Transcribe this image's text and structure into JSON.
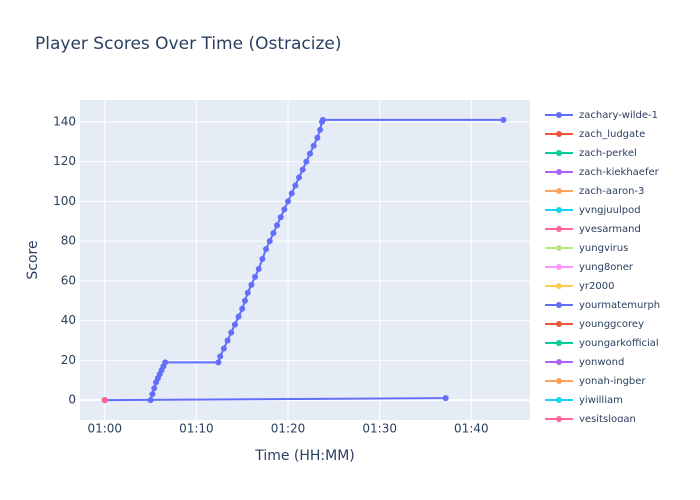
{
  "chart_data": {
    "type": "line",
    "title": "Player Scores Over Time (Ostracize)",
    "x_label": "Time (HH:MM)",
    "y_label": "Score",
    "xlim": [
      57.3,
      106.4
    ],
    "ylim": [
      -10,
      151
    ],
    "xticks": [
      {
        "value": 60,
        "label": "01:00"
      },
      {
        "value": 70,
        "label": "01:10"
      },
      {
        "value": 80,
        "label": "01:20"
      },
      {
        "value": 90,
        "label": "01:30"
      },
      {
        "value": 100,
        "label": "01:40"
      }
    ],
    "yticks": [
      0,
      20,
      40,
      60,
      80,
      100,
      120,
      140
    ],
    "grid": true,
    "legend": "right",
    "series": [
      {
        "name": "zachary-wilde-1",
        "color": "#636efa",
        "x": [
          65.0,
          65.2,
          65.4,
          65.6,
          65.8,
          66.0,
          66.2,
          66.4,
          66.6,
          72.4,
          72.6,
          73.0,
          73.4,
          73.8,
          74.2,
          74.6,
          75.0,
          75.3,
          75.6,
          76.0,
          76.4,
          76.8,
          77.2,
          77.6,
          78.0,
          78.4,
          78.8,
          79.2,
          79.6,
          80.0,
          80.4,
          80.8,
          81.2,
          81.6,
          82.0,
          82.4,
          82.8,
          83.2,
          83.5,
          83.7,
          83.8,
          103.5
        ],
        "values": [
          0,
          3,
          6,
          9,
          11,
          13,
          15,
          17,
          19,
          19,
          22,
          26,
          30,
          34,
          38,
          42,
          46,
          50,
          54,
          58,
          62,
          66,
          71,
          76,
          80,
          84,
          88,
          92,
          96,
          100,
          104,
          108,
          112,
          116,
          120,
          124,
          128,
          132,
          136,
          140,
          141,
          141
        ]
      },
      {
        "name": "zach_ludgate",
        "color": "#EF553B",
        "x": [
          60
        ],
        "values": [
          0
        ]
      },
      {
        "name": "zach-perkel",
        "color": "#00cc96",
        "x": [
          60
        ],
        "values": [
          0
        ]
      },
      {
        "name": "zach-kiekhaefer",
        "color": "#ab63fa",
        "x": [
          60
        ],
        "values": [
          0
        ]
      },
      {
        "name": "zach-aaron-3",
        "color": "#FFA15A",
        "x": [
          60
        ],
        "values": [
          0
        ]
      },
      {
        "name": "yvngjuulpod",
        "color": "#19d3f3",
        "x": [
          60
        ],
        "values": [
          0
        ]
      },
      {
        "name": "yvesarmand",
        "color": "#FF6692",
        "x": [
          60
        ],
        "values": [
          0
        ]
      },
      {
        "name": "yungvirus",
        "color": "#B6E880",
        "x": [
          60
        ],
        "values": [
          0
        ]
      },
      {
        "name": "yung8oner",
        "color": "#FF97FF",
        "x": [
          60
        ],
        "values": [
          0
        ]
      },
      {
        "name": "yr2000",
        "color": "#FECB52",
        "x": [
          60
        ],
        "values": [
          0
        ]
      },
      {
        "name": "yourmatemurph",
        "color": "#636efa",
        "x": [
          60,
          97.2
        ],
        "values": [
          0,
          1
        ]
      },
      {
        "name": "younggcorey",
        "color": "#EF553B",
        "x": [
          60
        ],
        "values": [
          0
        ]
      },
      {
        "name": "youngarkofficial",
        "color": "#00cc96",
        "x": [
          60
        ],
        "values": [
          0
        ]
      },
      {
        "name": "yonwond",
        "color": "#ab63fa",
        "x": [
          60
        ],
        "values": [
          0
        ]
      },
      {
        "name": "yonah-ingber",
        "color": "#FFA15A",
        "x": [
          60
        ],
        "values": [
          0
        ]
      },
      {
        "name": "yiwilliam",
        "color": "#19d3f3",
        "x": [
          60
        ],
        "values": [
          0
        ]
      },
      {
        "name": "yesitslogan",
        "color": "#FF6692",
        "x": [
          60
        ],
        "values": [
          0
        ]
      }
    ]
  }
}
